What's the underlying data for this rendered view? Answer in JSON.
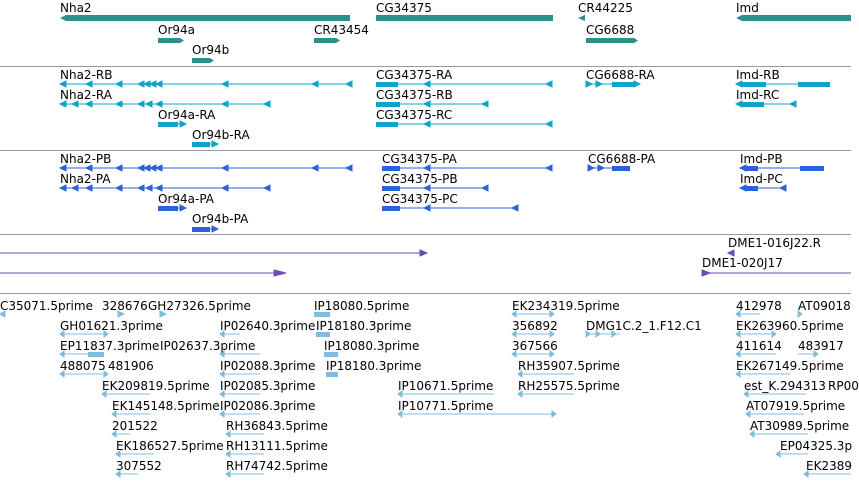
{
  "colors": {
    "gene": "#2f8f8a",
    "transcript": "#0fa3c8",
    "protein": "#2a62d8",
    "bac": "#6a4caf",
    "est": "#7fbcde",
    "separator": "#9a9a9a"
  },
  "genes": {
    "nha2": "Nha2",
    "cg34375": "CG34375",
    "cr44225": "CR44225",
    "imd": "Imd",
    "or94a": "Or94a",
    "cr43454": "CR43454",
    "cg6688": "CG6688",
    "or94b": "Or94b"
  },
  "transcripts": {
    "nha2_rb": "Nha2-RB",
    "nha2_ra": "Nha2-RA",
    "or94a_ra": "Or94a-RA",
    "or94b_ra": "Or94b-RA",
    "cg34375_ra": "CG34375-RA",
    "cg34375_rb": "CG34375-RB",
    "cg34375_rc": "CG34375-RC",
    "cg6688_ra": "CG6688-RA",
    "imd_rb": "Imd-RB",
    "imd_rc": "Imd-RC"
  },
  "proteins": {
    "nha2_pb": "Nha2-PB",
    "nha2_pa": "Nha2-PA",
    "or94a_pa": "Or94a-PA",
    "or94b_pa": "Or94b-PA",
    "cg34375_pa": "CG34375-PA",
    "cg34375_pb": "CG34375-PB",
    "cg34375_pc": "CG34375-PC",
    "cg6688_pa": "CG6688-PA",
    "imd_pb": "Imd-PB",
    "imd_pc": "Imd-PC"
  },
  "bacs": {
    "b1": "DME1-016J22.R",
    "b2": "DME1-020J17"
  },
  "ests": {
    "e1": "C35071.5prime",
    "e2": "328676",
    "e3": "GH27326.5prime",
    "e4": "GH01621.3prime",
    "e5": "EP11837.3prime",
    "e6": "IP02637.3prime",
    "e7": "488075",
    "e8": "481906",
    "e9": "EK209819.5prime",
    "e10": "EK145148.5prime",
    "e11": "201522",
    "e12": "EK186527.5prime",
    "e13": "307552",
    "e14": "IP02640.3prime",
    "e15": "IP02088.3prime",
    "e16": "IP02085.3prime",
    "e17": "IP02086.3prime",
    "e18": "RH36843.5prime",
    "e19": "RH13111.5prime",
    "e20": "RH74742.5prime",
    "e21": "IP18080.5prime",
    "e22": "IP18180.3prime",
    "e23": "IP18080.3prime",
    "e24": "IP18180.3prime",
    "e25": "IP10671.5prime",
    "e26": "IP10771.5prime",
    "e27": "EK234319.5prime",
    "e28": "356892",
    "e29": "367566",
    "e30": "RH35907.5prime",
    "e31": "RH25575.5prime",
    "e32": "DMG1C.2_1.F12.C1",
    "e33": "412978",
    "e34": "AT09018",
    "e35": "EK263960.5prime",
    "e36": "411614",
    "e37": "483917",
    "e38": "EK267149.5prime",
    "e39": "est_K.294313",
    "e40": "RP00",
    "e41": "AT07919.5prime",
    "e42": "AT30989.5prime",
    "e43": "EP04325.3p",
    "e44": "EK2389"
  }
}
